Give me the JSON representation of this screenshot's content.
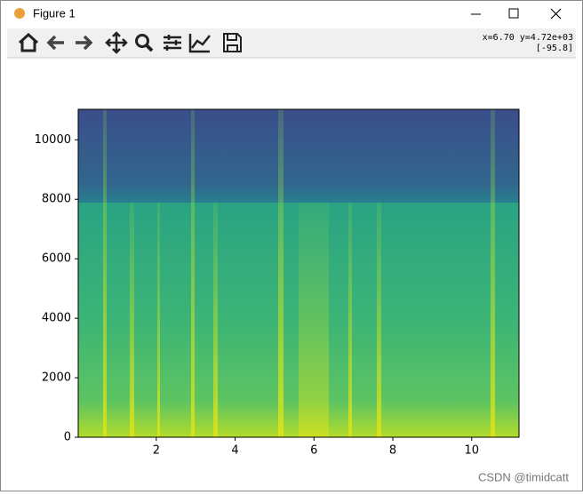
{
  "window": {
    "title": "Figure 1"
  },
  "toolbar": {
    "status_line1": "x=6.70 y=4.72e+03",
    "status_line2": "[-95.8]"
  },
  "watermark": "CSDN @timidcatt",
  "chart_data": {
    "type": "spectrogram",
    "xlim": [
      0.02,
      11.2
    ],
    "ylim": [
      0,
      11025
    ],
    "xticks": [
      2,
      4,
      6,
      8,
      10
    ],
    "yticks": [
      0,
      2000,
      4000,
      6000,
      8000,
      10000
    ]
  }
}
